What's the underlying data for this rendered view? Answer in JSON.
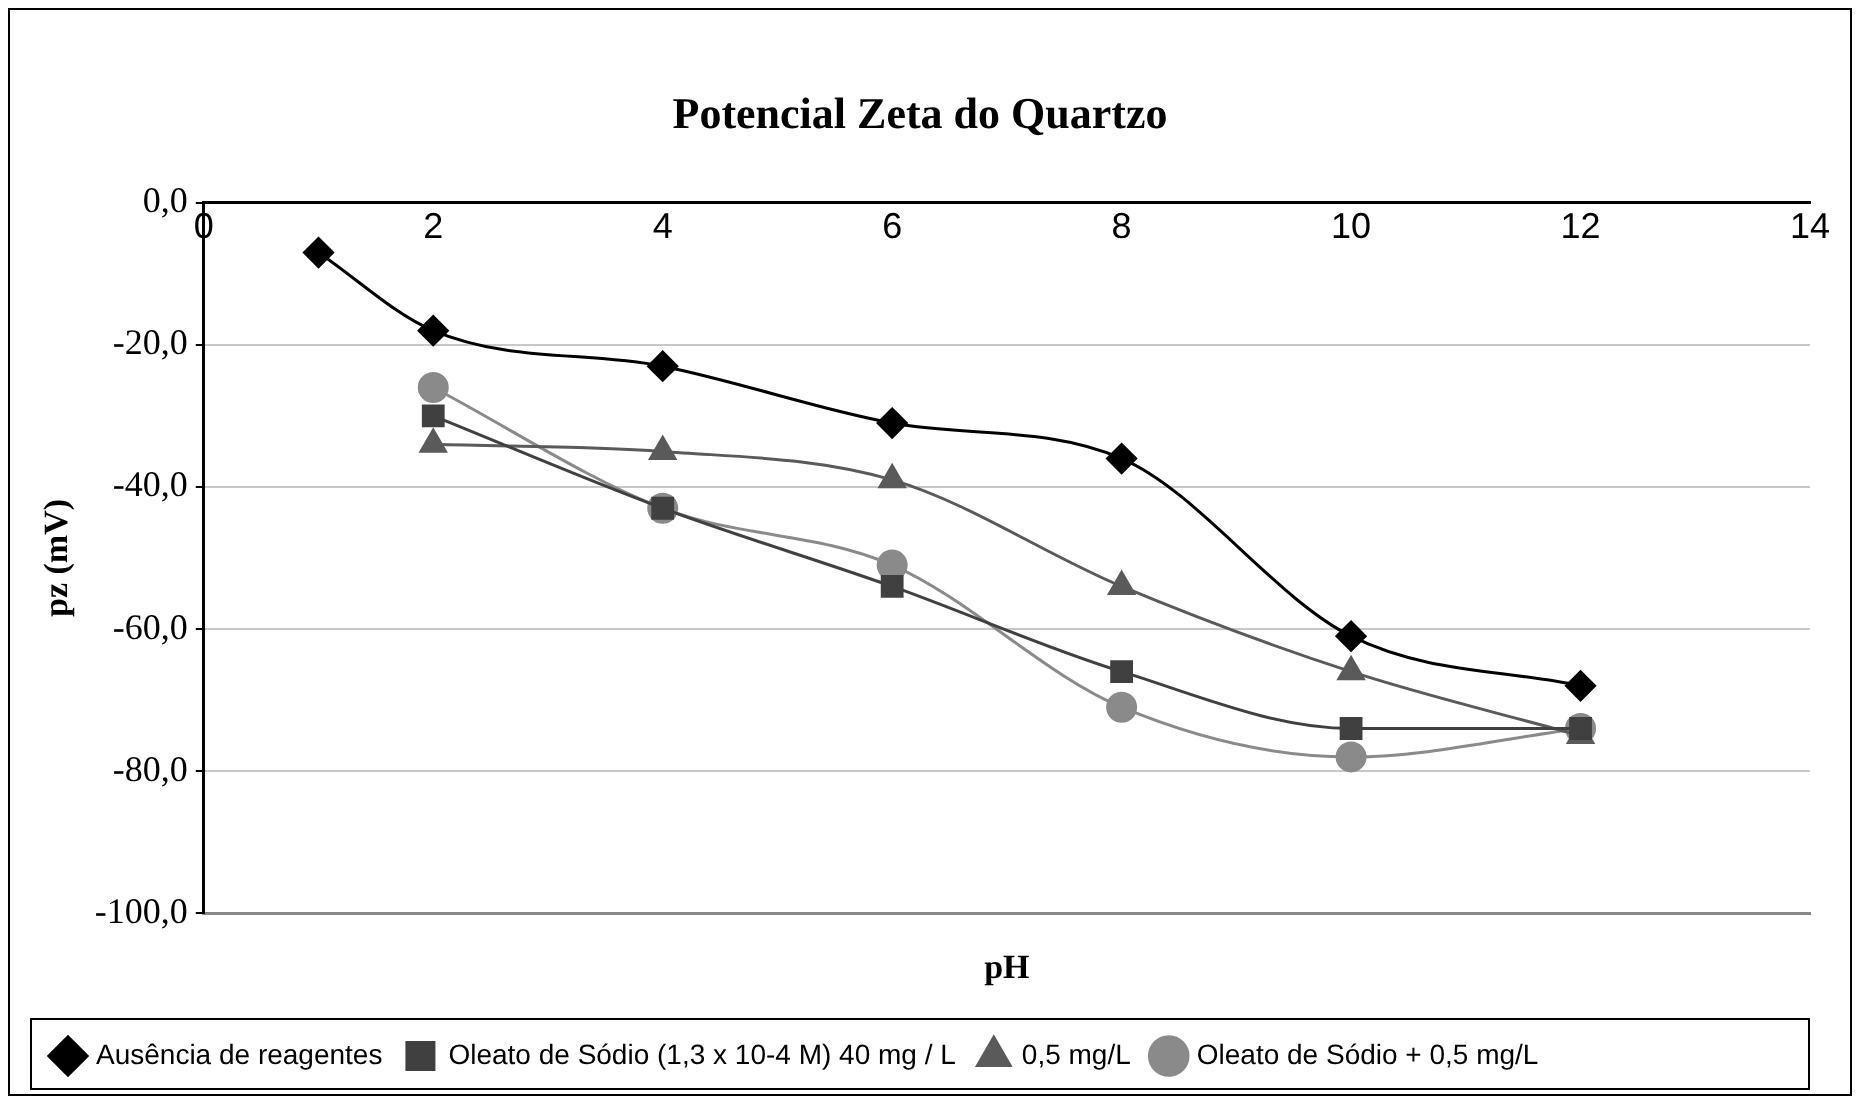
{
  "chart_data": {
    "type": "line",
    "title": "Potencial Zeta do Quartzo",
    "xlabel": "pH",
    "ylabel": "pz (mV)",
    "xlim": [
      0,
      14
    ],
    "xticks": [
      0,
      2,
      4,
      6,
      8,
      10,
      12,
      14
    ],
    "ylim": [
      -100,
      0
    ],
    "yticks": [
      {
        "value": 0,
        "label": "0,0"
      },
      {
        "value": -20,
        "label": "-20,0"
      },
      {
        "value": -40,
        "label": "-40,0"
      },
      {
        "value": -60,
        "label": "-60,0"
      },
      {
        "value": -80,
        "label": "-80,0"
      },
      {
        "value": -100,
        "label": "-100,0"
      }
    ],
    "grid": "y",
    "legend": "bottom",
    "series": [
      {
        "name": "Ausência de reagentes",
        "color": "#000000",
        "marker": "diamond",
        "x": [
          1,
          2,
          4,
          6,
          8,
          10,
          12
        ],
        "values": [
          -7,
          -18,
          -23,
          -31,
          -36,
          -61,
          -68
        ]
      },
      {
        "name": "Oleato de Sódio (1,3 x 10-4 M) 40 mg / L",
        "color": "#404040",
        "marker": "square",
        "x": [
          2,
          4,
          6,
          8,
          10,
          12
        ],
        "values": [
          -30,
          -43,
          -54,
          -66,
          -74,
          -74
        ]
      },
      {
        "name": "0,5 mg/L",
        "color": "#5a5a5a",
        "marker": "triangle",
        "x": [
          2,
          4,
          6,
          8,
          10,
          12
        ],
        "values": [
          -34,
          -35,
          -39,
          -54,
          -66,
          -75
        ]
      },
      {
        "name": "Oleato de Sódio + 0,5 mg/L",
        "color": "#8a8a8a",
        "marker": "circle",
        "x": [
          2,
          4,
          6,
          8,
          10,
          12
        ],
        "values": [
          -26,
          -43,
          -51,
          -71,
          -78,
          -74
        ]
      }
    ]
  }
}
